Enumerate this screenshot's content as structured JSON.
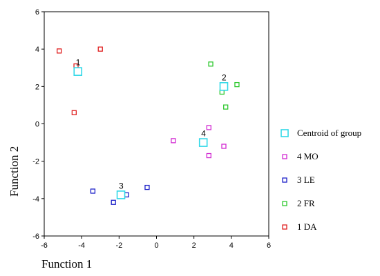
{
  "chart_data": {
    "type": "scatter",
    "title": "",
    "xlabel": "Function 1",
    "ylabel": "Function 2",
    "xlim": [
      -6,
      6
    ],
    "ylim": [
      -6,
      6
    ],
    "xticks": [
      "-6",
      "-4",
      "-2",
      "0",
      "2",
      "4",
      "6"
    ],
    "yticks": [
      "-6",
      "-4",
      "-2",
      "0",
      "2",
      "4",
      "6"
    ],
    "grid": false,
    "legend_position": "right",
    "series": [
      {
        "name": "1 DA",
        "color": "#e02020",
        "points": [
          {
            "x": -5.2,
            "y": 3.9
          },
          {
            "x": -3.0,
            "y": 4.0
          },
          {
            "x": -4.3,
            "y": 3.1
          },
          {
            "x": -4.4,
            "y": 0.6
          }
        ]
      },
      {
        "name": "2 FR",
        "color": "#2ec82e",
        "points": [
          {
            "x": 2.9,
            "y": 3.2
          },
          {
            "x": 4.3,
            "y": 2.1
          },
          {
            "x": 3.5,
            "y": 1.7
          },
          {
            "x": 3.7,
            "y": 0.9
          }
        ]
      },
      {
        "name": "3 LE",
        "color": "#1c20c8",
        "points": [
          {
            "x": -3.4,
            "y": -3.6
          },
          {
            "x": -0.5,
            "y": -3.4
          },
          {
            "x": -1.6,
            "y": -3.8
          },
          {
            "x": -2.3,
            "y": -4.2
          }
        ]
      },
      {
        "name": "4 MO",
        "color": "#d22ad2",
        "points": [
          {
            "x": 2.8,
            "y": -0.2
          },
          {
            "x": 0.9,
            "y": -0.9
          },
          {
            "x": 3.6,
            "y": -1.2
          },
          {
            "x": 2.8,
            "y": -1.7
          }
        ]
      }
    ],
    "centroids": {
      "name": "Centroid of group",
      "color": "#30d8e8",
      "points": [
        {
          "label": "1",
          "x": -4.2,
          "y": 2.8
        },
        {
          "label": "2",
          "x": 3.6,
          "y": 2.0
        },
        {
          "label": "3",
          "x": -1.9,
          "y": -3.8
        },
        {
          "label": "4",
          "x": 2.5,
          "y": -1.0
        }
      ]
    },
    "legend": [
      "Centroid of group",
      "4 MO",
      "3 LE",
      "2 FR",
      "1 DA"
    ]
  }
}
